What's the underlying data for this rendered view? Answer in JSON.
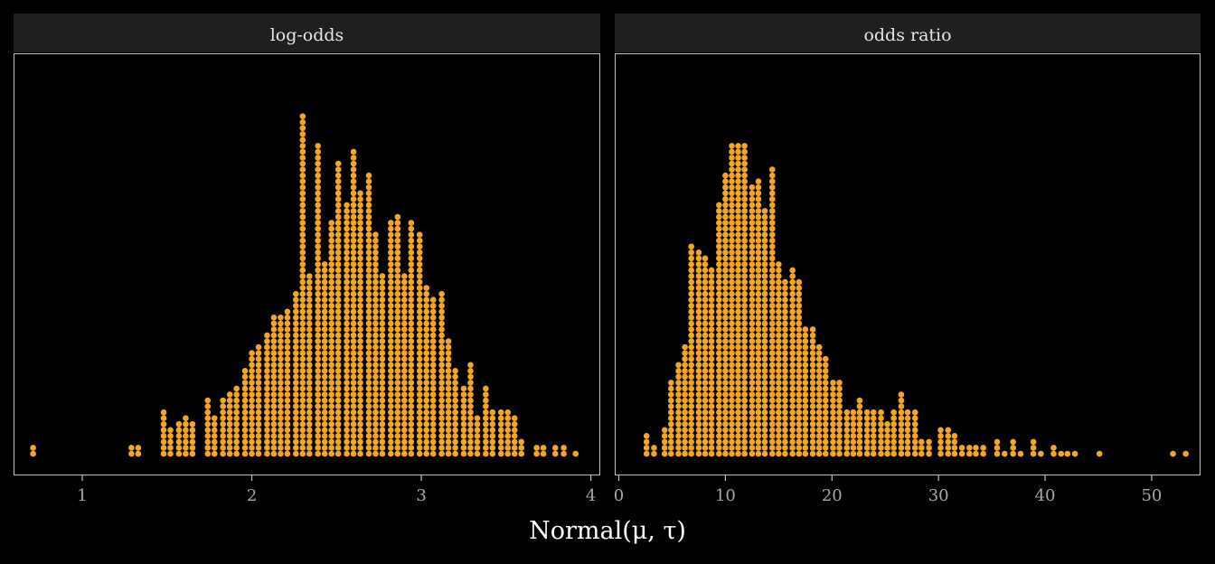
{
  "chart_data": {
    "type": "dotplot",
    "xlabel": "Normal(μ, τ)",
    "dot_color": "#F5A623",
    "background": "#000000",
    "strip_color": "#1F1F1F",
    "panel_border_color": "#BFBFBF",
    "facets": [
      {
        "label": "log-odds",
        "xlim": [
          0.6,
          4.05
        ],
        "ticks": [
          1,
          2,
          3,
          4
        ],
        "tick_labels": [
          "1",
          "2",
          "3",
          "4"
        ],
        "bins": [
          {
            "x": 0.71,
            "n": 2
          },
          {
            "x": 1.29,
            "n": 2
          },
          {
            "x": 1.33,
            "n": 2
          },
          {
            "x": 1.48,
            "n": 8
          },
          {
            "x": 1.52,
            "n": 5
          },
          {
            "x": 1.57,
            "n": 6
          },
          {
            "x": 1.61,
            "n": 7
          },
          {
            "x": 1.65,
            "n": 6
          },
          {
            "x": 1.74,
            "n": 10
          },
          {
            "x": 1.78,
            "n": 7
          },
          {
            "x": 1.83,
            "n": 10
          },
          {
            "x": 1.87,
            "n": 11
          },
          {
            "x": 1.91,
            "n": 12
          },
          {
            "x": 1.96,
            "n": 15
          },
          {
            "x": 2.0,
            "n": 18
          },
          {
            "x": 2.04,
            "n": 19
          },
          {
            "x": 2.09,
            "n": 21
          },
          {
            "x": 2.13,
            "n": 24
          },
          {
            "x": 2.17,
            "n": 24
          },
          {
            "x": 2.21,
            "n": 25
          },
          {
            "x": 2.26,
            "n": 28
          },
          {
            "x": 2.3,
            "n": 58
          },
          {
            "x": 2.34,
            "n": 31
          },
          {
            "x": 2.39,
            "n": 53
          },
          {
            "x": 2.43,
            "n": 33
          },
          {
            "x": 2.47,
            "n": 40
          },
          {
            "x": 2.51,
            "n": 50
          },
          {
            "x": 2.56,
            "n": 43
          },
          {
            "x": 2.6,
            "n": 52
          },
          {
            "x": 2.64,
            "n": 45
          },
          {
            "x": 2.69,
            "n": 48
          },
          {
            "x": 2.73,
            "n": 38
          },
          {
            "x": 2.77,
            "n": 31
          },
          {
            "x": 2.82,
            "n": 40
          },
          {
            "x": 2.86,
            "n": 41
          },
          {
            "x": 2.9,
            "n": 31
          },
          {
            "x": 2.94,
            "n": 40
          },
          {
            "x": 2.99,
            "n": 38
          },
          {
            "x": 3.03,
            "n": 29
          },
          {
            "x": 3.07,
            "n": 27
          },
          {
            "x": 3.12,
            "n": 28
          },
          {
            "x": 3.16,
            "n": 20
          },
          {
            "x": 3.2,
            "n": 15
          },
          {
            "x": 3.25,
            "n": 12
          },
          {
            "x": 3.29,
            "n": 16
          },
          {
            "x": 3.33,
            "n": 7
          },
          {
            "x": 3.38,
            "n": 12
          },
          {
            "x": 3.42,
            "n": 8
          },
          {
            "x": 3.47,
            "n": 8
          },
          {
            "x": 3.51,
            "n": 8
          },
          {
            "x": 3.55,
            "n": 7
          },
          {
            "x": 3.59,
            "n": 3
          },
          {
            "x": 3.68,
            "n": 2
          },
          {
            "x": 3.72,
            "n": 2
          },
          {
            "x": 3.79,
            "n": 2
          },
          {
            "x": 3.84,
            "n": 2
          },
          {
            "x": 3.91,
            "n": 1
          }
        ]
      },
      {
        "label": "odds ratio",
        "xlim": [
          -0.3,
          54.5
        ],
        "ticks": [
          0,
          10,
          20,
          30,
          40,
          50
        ],
        "tick_labels": [
          "0",
          "10",
          "20",
          "30",
          "40",
          "50"
        ],
        "bins": [
          {
            "x": 2.6,
            "n": 4
          },
          {
            "x": 3.3,
            "n": 2
          },
          {
            "x": 4.3,
            "n": 5
          },
          {
            "x": 4.9,
            "n": 13
          },
          {
            "x": 5.6,
            "n": 16
          },
          {
            "x": 6.2,
            "n": 19
          },
          {
            "x": 6.8,
            "n": 36
          },
          {
            "x": 7.5,
            "n": 35
          },
          {
            "x": 8.1,
            "n": 34
          },
          {
            "x": 8.7,
            "n": 32
          },
          {
            "x": 9.4,
            "n": 43
          },
          {
            "x": 10.0,
            "n": 48
          },
          {
            "x": 10.6,
            "n": 53
          },
          {
            "x": 11.2,
            "n": 53
          },
          {
            "x": 11.8,
            "n": 53
          },
          {
            "x": 12.5,
            "n": 46
          },
          {
            "x": 13.1,
            "n": 47
          },
          {
            "x": 13.7,
            "n": 42
          },
          {
            "x": 14.4,
            "n": 49
          },
          {
            "x": 15.0,
            "n": 33
          },
          {
            "x": 15.6,
            "n": 30
          },
          {
            "x": 16.3,
            "n": 32
          },
          {
            "x": 16.9,
            "n": 30
          },
          {
            "x": 17.5,
            "n": 22
          },
          {
            "x": 18.2,
            "n": 22
          },
          {
            "x": 18.8,
            "n": 19
          },
          {
            "x": 19.4,
            "n": 17
          },
          {
            "x": 20.1,
            "n": 13
          },
          {
            "x": 20.7,
            "n": 13
          },
          {
            "x": 21.4,
            "n": 8
          },
          {
            "x": 22.0,
            "n": 8
          },
          {
            "x": 22.6,
            "n": 10
          },
          {
            "x": 23.3,
            "n": 8
          },
          {
            "x": 23.9,
            "n": 8
          },
          {
            "x": 24.6,
            "n": 8
          },
          {
            "x": 25.2,
            "n": 6
          },
          {
            "x": 25.8,
            "n": 8
          },
          {
            "x": 26.5,
            "n": 11
          },
          {
            "x": 27.1,
            "n": 8
          },
          {
            "x": 27.8,
            "n": 8
          },
          {
            "x": 28.4,
            "n": 3
          },
          {
            "x": 29.1,
            "n": 3
          },
          {
            "x": 30.2,
            "n": 5
          },
          {
            "x": 30.9,
            "n": 5
          },
          {
            "x": 31.5,
            "n": 4
          },
          {
            "x": 32.2,
            "n": 2
          },
          {
            "x": 32.9,
            "n": 2
          },
          {
            "x": 33.5,
            "n": 2
          },
          {
            "x": 34.2,
            "n": 2
          },
          {
            "x": 35.5,
            "n": 3
          },
          {
            "x": 36.2,
            "n": 1
          },
          {
            "x": 37.0,
            "n": 3
          },
          {
            "x": 37.7,
            "n": 1
          },
          {
            "x": 38.9,
            "n": 3
          },
          {
            "x": 39.6,
            "n": 1
          },
          {
            "x": 40.8,
            "n": 2
          },
          {
            "x": 41.5,
            "n": 1
          },
          {
            "x": 42.1,
            "n": 1
          },
          {
            "x": 42.8,
            "n": 1
          },
          {
            "x": 45.1,
            "n": 1
          },
          {
            "x": 52.0,
            "n": 1
          },
          {
            "x": 53.2,
            "n": 1
          }
        ]
      }
    ]
  }
}
